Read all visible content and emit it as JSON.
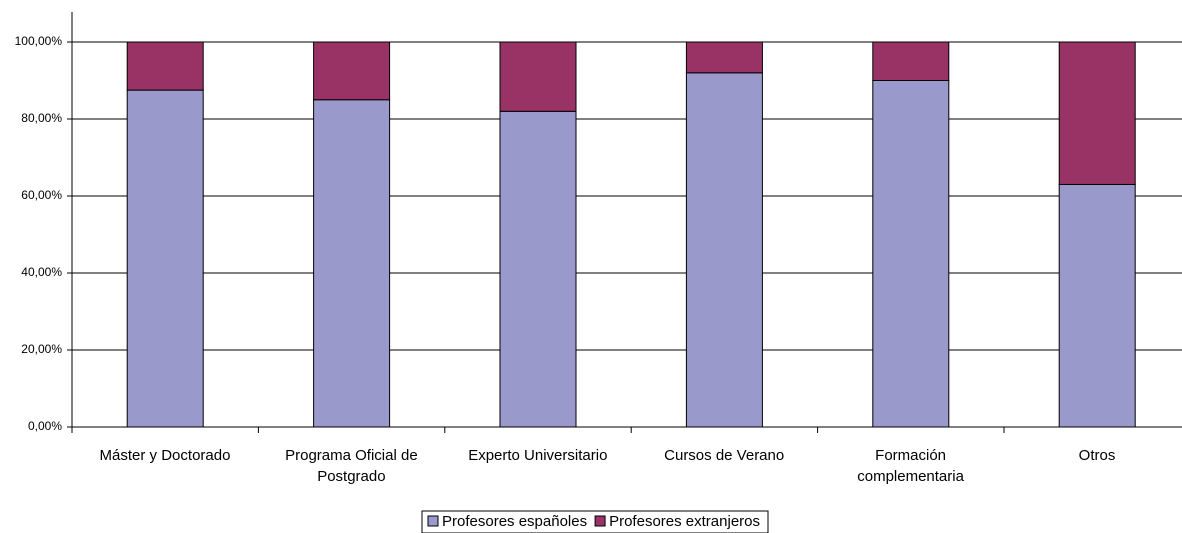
{
  "chart_data": {
    "type": "stacked_bar",
    "categories": [
      "Máster y Doctorado",
      "Programa Oficial de\nPostgrado",
      "Experto Universitario",
      "Cursos de Verano",
      "Formación\ncomplementaria",
      "Otros"
    ],
    "series": [
      {
        "name": "Profesores españoles",
        "color": "#9999cc",
        "values": [
          87.5,
          85,
          82,
          92,
          90,
          63
        ]
      },
      {
        "name": "Profesores extranjeros",
        "color": "#993366",
        "values": [
          12.5,
          15,
          18,
          8,
          10,
          37
        ]
      }
    ],
    "ylim": [
      0,
      100
    ],
    "yticks": [
      {
        "value": 0,
        "label": "0,00%"
      },
      {
        "value": 20,
        "label": "20,00%"
      },
      {
        "value": 40,
        "label": "40,00%"
      },
      {
        "value": 60,
        "label": "60,00%"
      },
      {
        "value": 80,
        "label": "80,00%"
      },
      {
        "value": 100,
        "label": "100,00%"
      }
    ],
    "grid": true,
    "legend": "bottom"
  }
}
